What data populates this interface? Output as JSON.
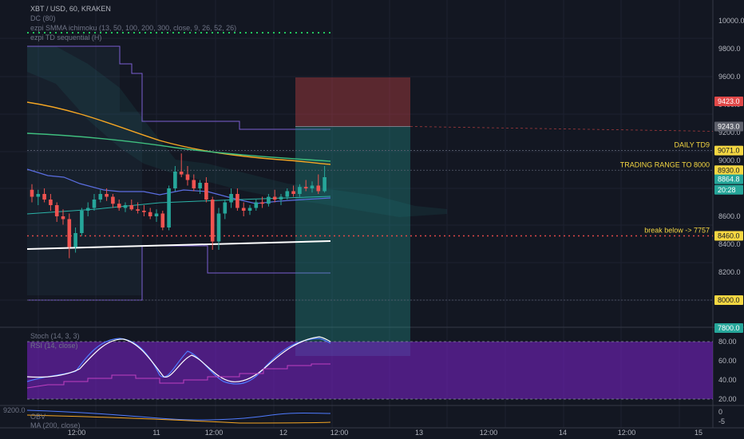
{
  "header": {
    "symbol": "XBT / USD, 60, KRAKEN",
    "ind1": "DC (80)",
    "ind2": "ezpi SMMA ichimoku (13, 50, 100, 200, 300, close, 9, 26, 52, 26)",
    "ind3": "ezpi TD sequential (H)"
  },
  "chart_data": {
    "type": "candlestick",
    "title": "XBT / USD, 60, KRAKEN",
    "price_axis": {
      "ylim": [
        7800,
        10200
      ],
      "ticks": [
        8200,
        8400,
        8600,
        9000,
        9200,
        9400,
        9600,
        9800,
        10000
      ],
      "tick_labels": [
        "8200.0",
        "8400.0",
        "8600.0",
        "9000.0",
        "9200.0",
        "9400.0",
        "9600.0",
        "9800.0",
        "10000.0"
      ]
    },
    "time_axis": {
      "labels": [
        "12:00",
        "11",
        "12:00",
        "12",
        "12:00",
        "13",
        "12:00",
        "14",
        "12:00",
        "15"
      ]
    },
    "candles": [
      {
        "o": 8790,
        "h": 8830,
        "l": 8700,
        "c": 8740
      },
      {
        "o": 8740,
        "h": 8790,
        "l": 8680,
        "c": 8760
      },
      {
        "o": 8760,
        "h": 8800,
        "l": 8700,
        "c": 8720
      },
      {
        "o": 8720,
        "h": 8760,
        "l": 8640,
        "c": 8680
      },
      {
        "o": 8680,
        "h": 8700,
        "l": 8560,
        "c": 8600
      },
      {
        "o": 8600,
        "h": 8650,
        "l": 8540,
        "c": 8580
      },
      {
        "o": 8580,
        "h": 8620,
        "l": 8300,
        "c": 8380
      },
      {
        "o": 8380,
        "h": 8520,
        "l": 8340,
        "c": 8480
      },
      {
        "o": 8480,
        "h": 8660,
        "l": 8460,
        "c": 8640
      },
      {
        "o": 8640,
        "h": 8700,
        "l": 8600,
        "c": 8660
      },
      {
        "o": 8660,
        "h": 8760,
        "l": 8640,
        "c": 8720
      },
      {
        "o": 8720,
        "h": 8790,
        "l": 8700,
        "c": 8760
      },
      {
        "o": 8760,
        "h": 8800,
        "l": 8710,
        "c": 8740
      },
      {
        "o": 8740,
        "h": 8760,
        "l": 8660,
        "c": 8690
      },
      {
        "o": 8690,
        "h": 8720,
        "l": 8640,
        "c": 8660
      },
      {
        "o": 8660,
        "h": 8700,
        "l": 8630,
        "c": 8680
      },
      {
        "o": 8680,
        "h": 8720,
        "l": 8640,
        "c": 8650
      },
      {
        "o": 8650,
        "h": 8700,
        "l": 8620,
        "c": 8640
      },
      {
        "o": 8640,
        "h": 8680,
        "l": 8600,
        "c": 8630
      },
      {
        "o": 8630,
        "h": 8660,
        "l": 8580,
        "c": 8600
      },
      {
        "o": 8600,
        "h": 8650,
        "l": 8560,
        "c": 8620
      },
      {
        "o": 8620,
        "h": 8640,
        "l": 8500,
        "c": 8520
      },
      {
        "o": 8520,
        "h": 8820,
        "l": 8500,
        "c": 8800
      },
      {
        "o": 8800,
        "h": 8960,
        "l": 8780,
        "c": 8920
      },
      {
        "o": 8920,
        "h": 9050,
        "l": 8880,
        "c": 8900
      },
      {
        "o": 8900,
        "h": 8960,
        "l": 8820,
        "c": 8860
      },
      {
        "o": 8860,
        "h": 8900,
        "l": 8780,
        "c": 8800
      },
      {
        "o": 8800,
        "h": 8860,
        "l": 8760,
        "c": 8840
      },
      {
        "o": 8840,
        "h": 8880,
        "l": 8700,
        "c": 8720
      },
      {
        "o": 8720,
        "h": 8740,
        "l": 8360,
        "c": 8420
      },
      {
        "o": 8420,
        "h": 8660,
        "l": 8360,
        "c": 8620
      },
      {
        "o": 8620,
        "h": 8720,
        "l": 8580,
        "c": 8700
      },
      {
        "o": 8700,
        "h": 8800,
        "l": 8660,
        "c": 8760
      },
      {
        "o": 8760,
        "h": 8800,
        "l": 8640,
        "c": 8660
      },
      {
        "o": 8660,
        "h": 8700,
        "l": 8600,
        "c": 8640
      },
      {
        "o": 8640,
        "h": 8680,
        "l": 8610,
        "c": 8660
      },
      {
        "o": 8660,
        "h": 8720,
        "l": 8640,
        "c": 8700
      },
      {
        "o": 8700,
        "h": 8740,
        "l": 8660,
        "c": 8690
      },
      {
        "o": 8690,
        "h": 8760,
        "l": 8670,
        "c": 8740
      },
      {
        "o": 8740,
        "h": 8790,
        "l": 8700,
        "c": 8720
      },
      {
        "o": 8720,
        "h": 8760,
        "l": 8680,
        "c": 8740
      },
      {
        "o": 8740,
        "h": 8800,
        "l": 8720,
        "c": 8780
      },
      {
        "o": 8780,
        "h": 8820,
        "l": 8740,
        "c": 8760
      },
      {
        "o": 8760,
        "h": 8830,
        "l": 8740,
        "c": 8810
      },
      {
        "o": 8810,
        "h": 8860,
        "l": 8780,
        "c": 8800
      },
      {
        "o": 8800,
        "h": 8850,
        "l": 8770,
        "c": 8820
      },
      {
        "o": 8820,
        "h": 8900,
        "l": 8760,
        "c": 8780
      },
      {
        "o": 8780,
        "h": 8960,
        "l": 8770,
        "c": 8880
      }
    ],
    "levels": [
      {
        "label": "DAILY TD9",
        "price": 9071.0,
        "tag": "9071.0",
        "color": "#f5d742"
      },
      {
        "label": "TRADING RANGE TO 8000",
        "price": 8930.0,
        "tag": "8930.0",
        "color": "#f5d742"
      },
      {
        "label": "break below -> 7757",
        "price": 8460.0,
        "tag": "8460.0",
        "color": "#f5d742"
      },
      {
        "label": "",
        "price": 8000.0,
        "tag": "8000.0",
        "color": "#f5d742"
      }
    ],
    "price_tags": [
      {
        "value": "9423.0",
        "price": 9423,
        "color": "#e04848"
      },
      {
        "value": "9243.0",
        "price": 9243,
        "color": "#5d606b"
      },
      {
        "value": "8864.8",
        "price": 8864.8,
        "color": "#26a69a"
      },
      {
        "value": "20:28",
        "price": 8790,
        "color": "#26a69a"
      },
      {
        "value": "7800.0",
        "price": 7800,
        "color": "#26a69a"
      }
    ],
    "position": {
      "stop": 9423,
      "entry": 9243,
      "target": 7800
    },
    "stoch": {
      "label": "Stoch (14, 3, 3)",
      "ticks": [
        20,
        40,
        60,
        80
      ],
      "tick_labels": [
        "20.00",
        "40.00",
        "60.00",
        "80.00"
      ],
      "band": [
        20,
        80
      ]
    },
    "rsi": {
      "label": "RSI (14, close)"
    },
    "obv": {
      "label": "OBV",
      "ma_label": "MA (200, close)",
      "tick_labels": [
        "0",
        "-5"
      ],
      "top_label": "9200.0"
    }
  }
}
